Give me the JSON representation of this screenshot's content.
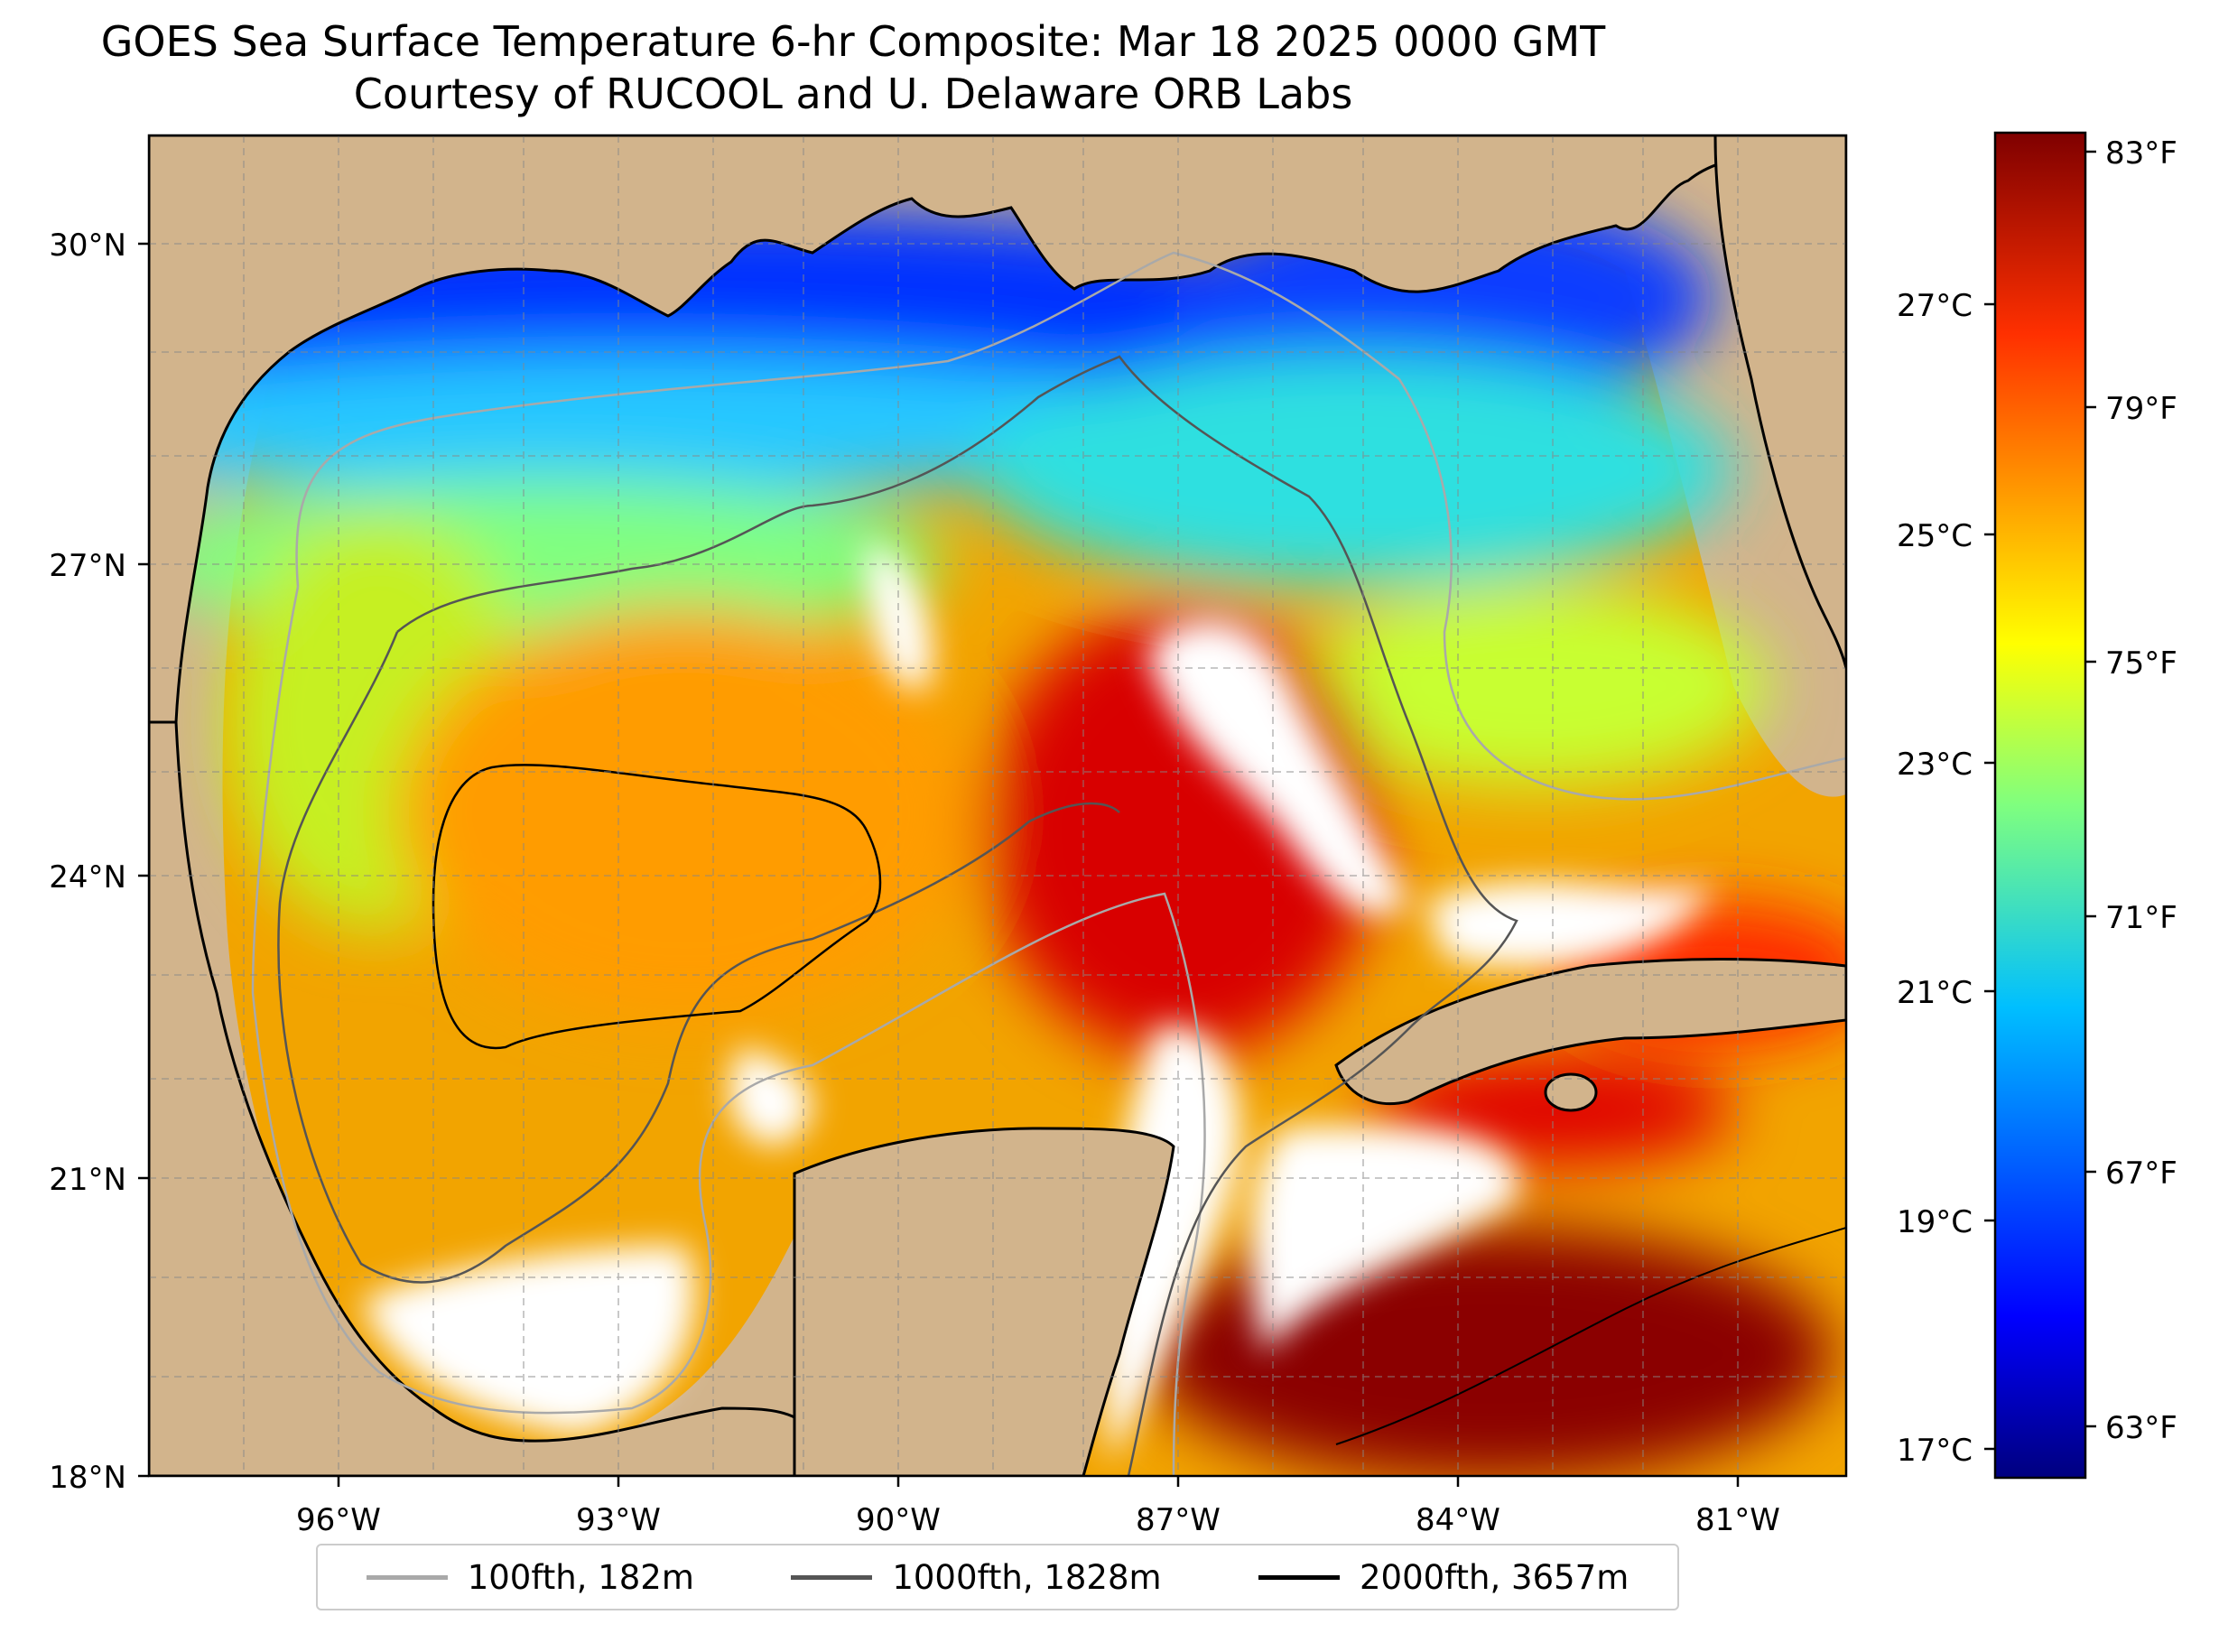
{
  "title_line1": "GOES Sea Surface Temperature 6-hr Composite: Mar 18 2025 0000 GMT",
  "title_line2": "Courtesy of RUCOOL and U. Delaware ORB Labs",
  "lat_labels": [
    "30°N",
    "27°N",
    "24°N",
    "21°N",
    "18°N"
  ],
  "lon_labels": [
    "96°W",
    "93°W",
    "90°W",
    "87°W",
    "84°W",
    "81°W"
  ],
  "colorbar": {
    "celsius_labels": [
      "27°C",
      "25°C",
      "23°C",
      "21°C",
      "19°C",
      "17°C"
    ],
    "fahrenheit_labels": [
      "83°F",
      "79°F",
      "75°F",
      "71°F",
      "67°F",
      "63°F"
    ],
    "colormap": "jet"
  },
  "legend": [
    {
      "label": "100fth, 182m",
      "color": "#a9a9a9"
    },
    {
      "label": "1000fth, 1828m",
      "color": "#555555"
    },
    {
      "label": "2000fth, 3657m",
      "color": "#000000"
    }
  ],
  "colors": {
    "land": "#d2b48c",
    "no_data": "#ffffff"
  }
}
